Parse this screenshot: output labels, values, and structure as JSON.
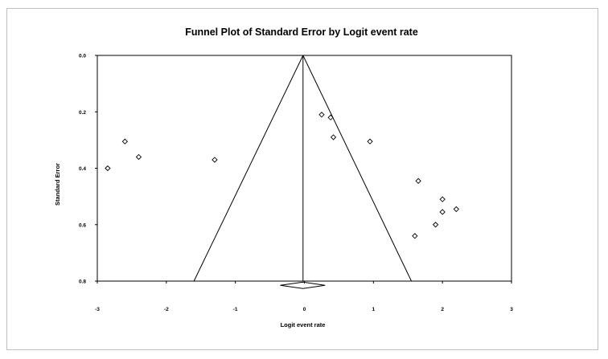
{
  "chart_data": {
    "type": "scatter",
    "title": "Funnel Plot of Standard Error by Logit event rate",
    "xlabel": "Logit event rate",
    "ylabel": "Standard Error",
    "xlim": [
      -3,
      3
    ],
    "ylim": [
      0,
      0.8
    ],
    "y_inverted": true,
    "x_ticks": [
      "-3",
      "-2",
      "-1",
      "0",
      "1",
      "2",
      "3"
    ],
    "y_ticks": [
      "0.0",
      "0.2",
      "0.4",
      "0.6",
      "0.8"
    ],
    "funnel_center": -0.02,
    "funnel_lines": [
      {
        "x": [
          -0.02,
          -1.6
        ],
        "y": [
          0,
          0.8
        ]
      },
      {
        "x": [
          -0.02,
          1.55
        ],
        "y": [
          0,
          0.8
        ]
      }
    ],
    "summary_diamond": {
      "x_center": -0.02,
      "x_low": -0.35,
      "x_high": 0.3,
      "y": 0.815
    },
    "points": [
      {
        "x": -2.85,
        "y": 0.4
      },
      {
        "x": -2.6,
        "y": 0.305
      },
      {
        "x": -2.4,
        "y": 0.36
      },
      {
        "x": -1.3,
        "y": 0.37
      },
      {
        "x": 0.25,
        "y": 0.21
      },
      {
        "x": 0.38,
        "y": 0.22
      },
      {
        "x": 0.42,
        "y": 0.29
      },
      {
        "x": 0.95,
        "y": 0.305
      },
      {
        "x": 1.65,
        "y": 0.445
      },
      {
        "x": 2.0,
        "y": 0.51
      },
      {
        "x": 2.2,
        "y": 0.545
      },
      {
        "x": 2.0,
        "y": 0.555
      },
      {
        "x": 1.9,
        "y": 0.6
      },
      {
        "x": 1.6,
        "y": 0.64
      }
    ]
  }
}
